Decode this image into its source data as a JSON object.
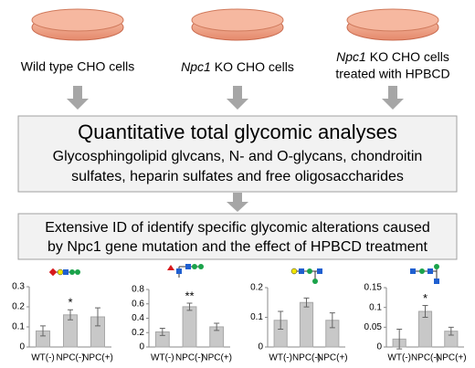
{
  "cells": [
    {
      "text": "Wild type CHO cells"
    },
    {
      "italic": "Npc1",
      "text": "KO CHO cells"
    },
    {
      "italic": "Npc1",
      "lines": [
        "KO CHO cells",
        "treated with HPBCD"
      ]
    }
  ],
  "analysis_box": {
    "title": "Quantitative total glycomic analyses",
    "lines": [
      "Glycosphingolipid glvcans, N- and O-glycans, chondroitin",
      "sulfates, heparin sulfates and free oligosaccharides"
    ]
  },
  "result_box": {
    "lines": [
      "Extensive ID of identify specific glycomic alterations caused",
      "by Npc1 gene mutation and the effect of HPBCD treatment"
    ]
  },
  "chart_data": [
    {
      "type": "bar",
      "categories": [
        "WT(-)",
        "NPC(-)",
        "NPC(+)"
      ],
      "values": [
        0.08,
        0.16,
        0.15
      ],
      "errors": [
        0.025,
        0.025,
        0.045
      ],
      "significance": [
        null,
        "*",
        null
      ],
      "color": "#c8c8c8",
      "ylim": [
        0,
        0.3
      ],
      "yticks": [
        0,
        0.1,
        0.2,
        0.3
      ]
    },
    {
      "type": "bar",
      "categories": [
        "WT(-)",
        "NPC(-)",
        "NPC(+)"
      ],
      "values": [
        0.21,
        0.56,
        0.28
      ],
      "errors": [
        0.05,
        0.05,
        0.05
      ],
      "significance": [
        null,
        "**",
        null
      ],
      "color": "#c8c8c8",
      "ylim": [
        0,
        0.8
      ],
      "yticks": [
        0,
        0.2,
        0.4,
        0.6,
        0.8
      ]
    },
    {
      "type": "bar",
      "categories": [
        "WT(-)",
        "NPC(-)",
        "NPC(+)"
      ],
      "values": [
        0.09,
        0.15,
        0.09
      ],
      "errors": [
        0.03,
        0.015,
        0.025
      ],
      "significance": [
        null,
        null,
        null
      ],
      "color": "#c8c8c8",
      "ylim": [
        0,
        0.2
      ],
      "yticks": [
        0,
        0.1,
        0.2
      ]
    },
    {
      "type": "bar",
      "categories": [
        "WT(-)",
        "NPC(-)",
        "NPC(+)"
      ],
      "values": [
        0.02,
        0.09,
        0.04
      ],
      "errors": [
        0.025,
        0.015,
        0.01
      ],
      "significance": [
        null,
        "*",
        null
      ],
      "color": "#c8c8c8",
      "ylim": [
        0,
        0.15
      ],
      "yticks": [
        0,
        0.05,
        0.1,
        0.15
      ]
    }
  ]
}
